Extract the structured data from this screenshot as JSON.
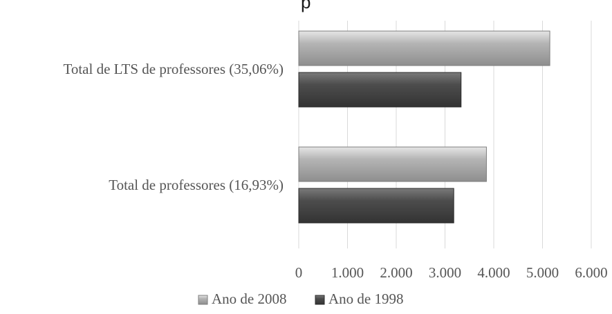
{
  "chart_data": {
    "type": "bar",
    "orientation": "horizontal",
    "title_fragment": "p",
    "categories": [
      "Total de LTS de professores (35,06%)",
      "Total de professores (16,93%)"
    ],
    "series": [
      {
        "name": "Ano de 2008",
        "values": [
          5150,
          3850
        ],
        "color": "#a3a3a3"
      },
      {
        "name": "Ano de 1998",
        "values": [
          3330,
          3180
        ],
        "color": "#4a4a4a"
      }
    ],
    "xlim": [
      0,
      6000
    ],
    "ticks": [
      0,
      1000,
      2000,
      3000,
      4000,
      5000,
      6000
    ],
    "tick_labels": [
      "0",
      "1.000",
      "2.000",
      "3.000",
      "4.000",
      "5.000",
      "6.000"
    ],
    "grid": true,
    "legend_position": "bottom"
  }
}
